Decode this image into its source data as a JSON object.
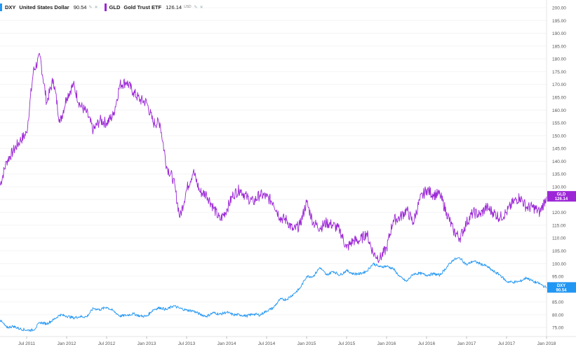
{
  "legend": [
    {
      "symbol": "DXY",
      "name": "United States Dollar",
      "value": "90.54",
      "unit": "",
      "color": "#2196f3"
    },
    {
      "symbol": "GLD",
      "name": "Gold Trust ETF",
      "value": "126.14",
      "unit": "USD",
      "color": "#9c27d6"
    }
  ],
  "chart_data": {
    "type": "line",
    "xlabel": "",
    "ylabel": "",
    "x_range": [
      "2011-03",
      "2018-01"
    ],
    "ylim": [
      71.5,
      203
    ],
    "y_ticks": [
      75.0,
      80.0,
      85.0,
      90.0,
      95.0,
      100.0,
      105.0,
      110.0,
      115.0,
      120.0,
      125.0,
      130.0,
      135.0,
      140.0,
      145.0,
      150.0,
      155.0,
      160.0,
      165.0,
      170.0,
      175.0,
      180.0,
      185.0,
      190.0,
      195.0,
      200.0
    ],
    "y_tick_labels": [
      "75.00",
      "80.00",
      "85.00",
      "90.00",
      "95.00",
      "100.00",
      "105.00",
      "110.00",
      "115.00",
      "120.00",
      "125.00",
      "130.00",
      "135.00",
      "140.00",
      "145.00",
      "150.00",
      "155.00",
      "160.00",
      "165.00",
      "170.00",
      "175.00",
      "180.00",
      "185.00",
      "190.00",
      "195.00",
      "200.00"
    ],
    "x_ticks": [
      {
        "label": "Jul 2011",
        "date": "2011-07"
      },
      {
        "label": "Jan 2012",
        "date": "2012-01"
      },
      {
        "label": "Jul 2012",
        "date": "2012-07"
      },
      {
        "label": "Jan 2013",
        "date": "2013-01"
      },
      {
        "label": "Jul 2013",
        "date": "2013-07"
      },
      {
        "label": "Jan 2014",
        "date": "2014-01"
      },
      {
        "label": "Jul 2014",
        "date": "2014-07"
      },
      {
        "label": "Jan 2015",
        "date": "2015-01"
      },
      {
        "label": "Jul 2015",
        "date": "2015-07"
      },
      {
        "label": "Jan 2016",
        "date": "2016-01"
      },
      {
        "label": "Jul 2016",
        "date": "2016-07"
      },
      {
        "label": "Jan 2017",
        "date": "2017-01"
      },
      {
        "label": "Jul 2017",
        "date": "2017-07"
      },
      {
        "label": "Jan 2018",
        "date": "2018-01"
      }
    ],
    "series": [
      {
        "name": "GLD",
        "color": "#9c27d6",
        "last_label": "126.14",
        "points": [
          [
            "2011-03",
            130.5
          ],
          [
            "2011-04",
            140
          ],
          [
            "2011-05",
            144
          ],
          [
            "2011-06",
            148
          ],
          [
            "2011-07",
            151
          ],
          [
            "2011-08",
            175
          ],
          [
            "2011-09",
            181
          ],
          [
            "2011-10",
            163
          ],
          [
            "2011-11",
            172
          ],
          [
            "2011-12",
            155
          ],
          [
            "2012-01",
            165
          ],
          [
            "2012-02",
            170
          ],
          [
            "2012-03",
            162
          ],
          [
            "2012-04",
            159
          ],
          [
            "2012-05",
            152
          ],
          [
            "2012-06",
            156
          ],
          [
            "2012-07",
            155
          ],
          [
            "2012-08",
            158
          ],
          [
            "2012-09",
            170
          ],
          [
            "2012-10",
            171
          ],
          [
            "2012-11",
            167
          ],
          [
            "2012-12",
            164
          ],
          [
            "2013-01",
            163
          ],
          [
            "2013-02",
            155
          ],
          [
            "2013-03",
            155
          ],
          [
            "2013-04",
            138
          ],
          [
            "2013-05",
            133
          ],
          [
            "2013-06",
            118
          ],
          [
            "2013-07",
            129
          ],
          [
            "2013-08",
            136
          ],
          [
            "2013-09",
            128
          ],
          [
            "2013-10",
            127
          ],
          [
            "2013-11",
            122
          ],
          [
            "2013-12",
            117
          ],
          [
            "2014-01",
            121
          ],
          [
            "2014-02",
            127
          ],
          [
            "2014-03",
            129
          ],
          [
            "2014-04",
            126
          ],
          [
            "2014-05",
            124
          ],
          [
            "2014-06",
            127
          ],
          [
            "2014-07",
            126
          ],
          [
            "2014-08",
            124
          ],
          [
            "2014-09",
            118
          ],
          [
            "2014-10",
            117
          ],
          [
            "2014-11",
            113
          ],
          [
            "2014-12",
            115
          ],
          [
            "2015-01",
            124
          ],
          [
            "2015-02",
            116
          ],
          [
            "2015-03",
            114
          ],
          [
            "2015-04",
            116
          ],
          [
            "2015-05",
            115
          ],
          [
            "2015-06",
            113
          ],
          [
            "2015-07",
            106
          ],
          [
            "2015-08",
            109
          ],
          [
            "2015-09",
            109
          ],
          [
            "2015-10",
            112
          ],
          [
            "2015-11",
            104
          ],
          [
            "2015-12",
            102
          ],
          [
            "2016-01",
            106
          ],
          [
            "2016-02",
            117
          ],
          [
            "2016-03",
            118
          ],
          [
            "2016-04",
            121
          ],
          [
            "2016-05",
            116
          ],
          [
            "2016-06",
            125
          ],
          [
            "2016-07",
            129
          ],
          [
            "2016-08",
            127
          ],
          [
            "2016-09",
            127
          ],
          [
            "2016-10",
            120
          ],
          [
            "2016-11",
            113
          ],
          [
            "2016-12",
            110
          ],
          [
            "2017-01",
            116
          ],
          [
            "2017-02",
            120
          ],
          [
            "2017-03",
            119
          ],
          [
            "2017-04",
            122
          ],
          [
            "2017-05",
            120
          ],
          [
            "2017-06",
            118
          ],
          [
            "2017-07",
            120
          ],
          [
            "2017-08",
            124
          ],
          [
            "2017-09",
            126
          ],
          [
            "2017-10",
            122
          ],
          [
            "2017-11",
            122
          ],
          [
            "2017-12",
            120
          ],
          [
            "2018-01",
            126.14
          ]
        ]
      },
      {
        "name": "DXY",
        "color": "#2196f3",
        "last_label": "90.54",
        "points": [
          [
            "2011-03",
            78
          ],
          [
            "2011-04",
            75
          ],
          [
            "2011-05",
            75.5
          ],
          [
            "2011-06",
            74.5
          ],
          [
            "2011-07",
            74
          ],
          [
            "2011-08",
            74
          ],
          [
            "2011-09",
            77
          ],
          [
            "2011-10",
            76.5
          ],
          [
            "2011-11",
            78
          ],
          [
            "2011-12",
            80
          ],
          [
            "2012-01",
            79.5
          ],
          [
            "2012-02",
            78.8
          ],
          [
            "2012-03",
            79.3
          ],
          [
            "2012-04",
            79.2
          ],
          [
            "2012-05",
            82.5
          ],
          [
            "2012-06",
            82
          ],
          [
            "2012-07",
            83
          ],
          [
            "2012-08",
            81.5
          ],
          [
            "2012-09",
            79.5
          ],
          [
            "2012-10",
            79.8
          ],
          [
            "2012-11",
            80.4
          ],
          [
            "2012-12",
            79.5
          ],
          [
            "2013-01",
            79.4
          ],
          [
            "2013-02",
            82
          ],
          [
            "2013-03",
            82.8
          ],
          [
            "2013-04",
            82
          ],
          [
            "2013-05",
            83.5
          ],
          [
            "2013-06",
            82.5
          ],
          [
            "2013-07",
            81.8
          ],
          [
            "2013-08",
            81.5
          ],
          [
            "2013-09",
            80.2
          ],
          [
            "2013-10",
            79.4
          ],
          [
            "2013-11",
            80.8
          ],
          [
            "2013-12",
            80.2
          ],
          [
            "2014-01",
            81
          ],
          [
            "2014-02",
            80
          ],
          [
            "2014-03",
            80
          ],
          [
            "2014-04",
            79.5
          ],
          [
            "2014-05",
            80.3
          ],
          [
            "2014-06",
            79.9
          ],
          [
            "2014-07",
            81.5
          ],
          [
            "2014-08",
            82.7
          ],
          [
            "2014-09",
            86
          ],
          [
            "2014-10",
            86
          ],
          [
            "2014-11",
            88
          ],
          [
            "2014-12",
            90.3
          ],
          [
            "2015-01",
            95
          ],
          [
            "2015-02",
            95
          ],
          [
            "2015-03",
            98.5
          ],
          [
            "2015-04",
            95.5
          ],
          [
            "2015-05",
            97
          ],
          [
            "2015-06",
            95.5
          ],
          [
            "2015-07",
            97.3
          ],
          [
            "2015-08",
            96
          ],
          [
            "2015-09",
            96
          ],
          [
            "2015-10",
            97
          ],
          [
            "2015-11",
            100
          ],
          [
            "2015-12",
            98.7
          ],
          [
            "2016-01",
            99
          ],
          [
            "2016-02",
            98
          ],
          [
            "2016-03",
            94.8
          ],
          [
            "2016-04",
            93
          ],
          [
            "2016-05",
            95.9
          ],
          [
            "2016-06",
            96.2
          ],
          [
            "2016-07",
            95.5
          ],
          [
            "2016-08",
            96
          ],
          [
            "2016-09",
            95.5
          ],
          [
            "2016-10",
            98.5
          ],
          [
            "2016-11",
            101.5
          ],
          [
            "2016-12",
            102.2
          ],
          [
            "2017-01",
            99.5
          ],
          [
            "2017-02",
            101
          ],
          [
            "2017-03",
            100
          ],
          [
            "2017-04",
            99
          ],
          [
            "2017-05",
            97
          ],
          [
            "2017-06",
            95.6
          ],
          [
            "2017-07",
            93
          ],
          [
            "2017-08",
            92.7
          ],
          [
            "2017-09",
            93
          ],
          [
            "2017-10",
            94.5
          ],
          [
            "2017-11",
            93
          ],
          [
            "2017-12",
            92.1
          ],
          [
            "2018-01",
            90.54
          ]
        ]
      }
    ]
  }
}
